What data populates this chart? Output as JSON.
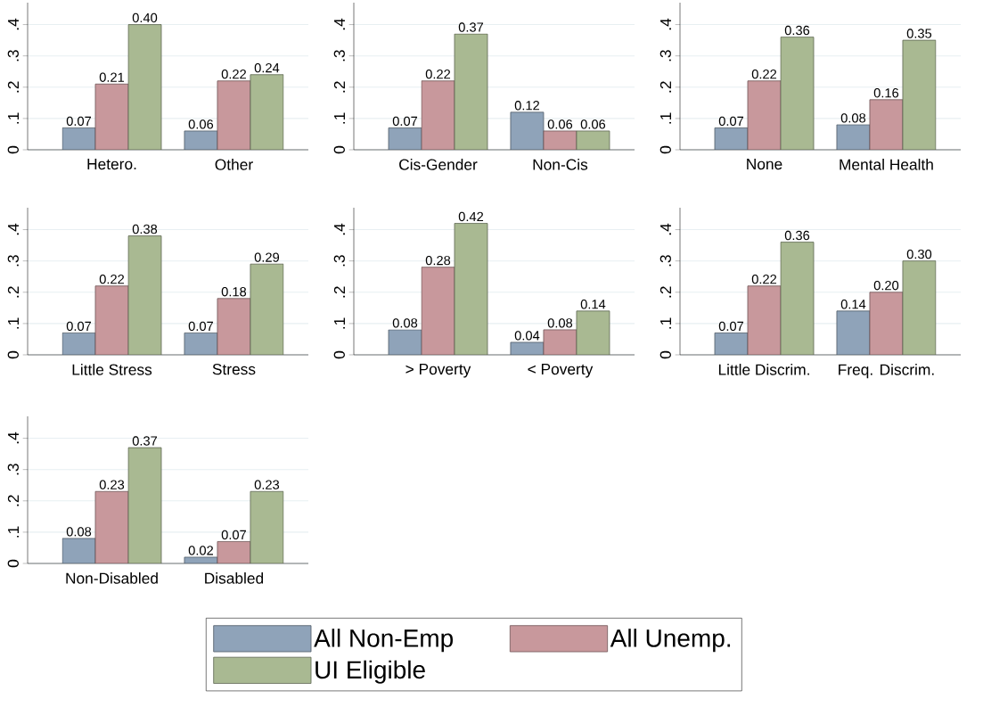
{
  "chart_data": [
    {
      "type": "bar",
      "categories": [
        "Hetero.",
        "Other"
      ],
      "ylim": [
        0,
        0.47
      ],
      "yticks": [
        0,
        {
          "value": 0.1,
          "label": ".1"
        },
        {
          "value": 0.2,
          "label": ".2"
        },
        {
          "value": 0.3,
          "label": ".3"
        },
        {
          "value": 0.4,
          "label": ".4"
        }
      ],
      "grid": "y",
      "series": [
        {
          "color": "#8fa3b9",
          "values": [
            0.07,
            0.06
          ],
          "value_labels": [
            "0.07",
            "0.06"
          ]
        },
        {
          "color": "#c8989c",
          "values": [
            0.21,
            0.22
          ],
          "value_labels": [
            "0.21",
            "0.22"
          ]
        },
        {
          "color": "#a9b992",
          "values": [
            0.4,
            0.24
          ],
          "value_labels": [
            "0.40",
            "0.24"
          ]
        }
      ]
    },
    {
      "type": "bar",
      "categories": [
        "Cis-Gender",
        "Non-Cis"
      ],
      "ylim": [
        0,
        0.47
      ],
      "yticks": [
        0,
        {
          "value": 0.1,
          "label": ".1"
        },
        {
          "value": 0.2,
          "label": ".2"
        },
        {
          "value": 0.3,
          "label": ".3"
        },
        {
          "value": 0.4,
          "label": ".4"
        }
      ],
      "grid": "y",
      "series": [
        {
          "color": "#8fa3b9",
          "values": [
            0.07,
            0.12
          ],
          "value_labels": [
            "0.07",
            "0.12"
          ]
        },
        {
          "color": "#c8989c",
          "values": [
            0.22,
            0.06
          ],
          "value_labels": [
            "0.22",
            "0.06"
          ]
        },
        {
          "color": "#a9b992",
          "values": [
            0.37,
            0.06
          ],
          "value_labels": [
            "0.37",
            "0.06"
          ]
        }
      ]
    },
    {
      "type": "bar",
      "categories": [
        "None",
        "Mental Health"
      ],
      "ylim": [
        0,
        0.47
      ],
      "yticks": [
        0,
        {
          "value": 0.1,
          "label": ".1"
        },
        {
          "value": 0.2,
          "label": ".2"
        },
        {
          "value": 0.3,
          "label": ".3"
        },
        {
          "value": 0.4,
          "label": ".4"
        }
      ],
      "grid": "y",
      "series": [
        {
          "color": "#8fa3b9",
          "values": [
            0.07,
            0.08
          ],
          "value_labels": [
            "0.07",
            "0.08"
          ]
        },
        {
          "color": "#c8989c",
          "values": [
            0.22,
            0.16
          ],
          "value_labels": [
            "0.22",
            "0.16"
          ]
        },
        {
          "color": "#a9b992",
          "values": [
            0.36,
            0.35
          ],
          "value_labels": [
            "0.36",
            "0.35"
          ]
        }
      ]
    },
    {
      "type": "bar",
      "categories": [
        "Little Stress",
        "Stress"
      ],
      "ylim": [
        0,
        0.47
      ],
      "yticks": [
        0,
        {
          "value": 0.1,
          "label": ".1"
        },
        {
          "value": 0.2,
          "label": ".2"
        },
        {
          "value": 0.3,
          "label": ".3"
        },
        {
          "value": 0.4,
          "label": ".4"
        }
      ],
      "grid": "y",
      "series": [
        {
          "color": "#8fa3b9",
          "values": [
            0.07,
            0.07
          ],
          "value_labels": [
            "0.07",
            "0.07"
          ]
        },
        {
          "color": "#c8989c",
          "values": [
            0.22,
            0.18
          ],
          "value_labels": [
            "0.22",
            "0.18"
          ]
        },
        {
          "color": "#a9b992",
          "values": [
            0.38,
            0.29
          ],
          "value_labels": [
            "0.38",
            "0.29"
          ]
        }
      ]
    },
    {
      "type": "bar",
      "categories": [
        "> Poverty",
        "< Poverty"
      ],
      "ylim": [
        0,
        0.47
      ],
      "yticks": [
        0,
        {
          "value": 0.1,
          "label": ".1"
        },
        {
          "value": 0.2,
          "label": ".2"
        },
        {
          "value": 0.3,
          "label": ".3"
        },
        {
          "value": 0.4,
          "label": ".4"
        }
      ],
      "grid": "y",
      "series": [
        {
          "color": "#8fa3b9",
          "values": [
            0.08,
            0.04
          ],
          "value_labels": [
            "0.08",
            "0.04"
          ]
        },
        {
          "color": "#c8989c",
          "values": [
            0.28,
            0.08
          ],
          "value_labels": [
            "0.28",
            "0.08"
          ]
        },
        {
          "color": "#a9b992",
          "values": [
            0.42,
            0.14
          ],
          "value_labels": [
            "0.42",
            "0.14"
          ]
        }
      ]
    },
    {
      "type": "bar",
      "categories": [
        "Little Discrim.",
        "Freq. Discrim."
      ],
      "ylim": [
        0,
        0.47
      ],
      "yticks": [
        0,
        {
          "value": 0.1,
          "label": ".1"
        },
        {
          "value": 0.2,
          "label": ".2"
        },
        {
          "value": 0.3,
          "label": ".3"
        },
        {
          "value": 0.4,
          "label": ".4"
        }
      ],
      "grid": "y",
      "series": [
        {
          "color": "#8fa3b9",
          "values": [
            0.07,
            0.14
          ],
          "value_labels": [
            "0.07",
            "0.14"
          ]
        },
        {
          "color": "#c8989c",
          "values": [
            0.22,
            0.2
          ],
          "value_labels": [
            "0.22",
            "0.20"
          ]
        },
        {
          "color": "#a9b992",
          "values": [
            0.36,
            0.3
          ],
          "value_labels": [
            "0.36",
            "0.30"
          ]
        }
      ]
    },
    {
      "type": "bar",
      "categories": [
        "Non-Disabled",
        "Disabled"
      ],
      "ylim": [
        0,
        0.47
      ],
      "yticks": [
        0,
        {
          "value": 0.1,
          "label": ".1"
        },
        {
          "value": 0.2,
          "label": ".2"
        },
        {
          "value": 0.3,
          "label": ".3"
        },
        {
          "value": 0.4,
          "label": ".4"
        }
      ],
      "grid": "y",
      "legend": "bottom",
      "series": [
        {
          "name": "All Non-Emp",
          "color": "#8fa3b9",
          "values": [
            0.08,
            0.02
          ],
          "value_labels": [
            "0.08",
            "0.02"
          ]
        },
        {
          "name": "All Unemp.",
          "color": "#c8989c",
          "values": [
            0.23,
            0.07
          ],
          "value_labels": [
            "0.23",
            "0.07"
          ]
        },
        {
          "name": "UI Eligible",
          "color": "#a9b992",
          "values": [
            0.37,
            0.23
          ],
          "value_labels": [
            "0.37",
            "0.23"
          ]
        }
      ]
    }
  ]
}
